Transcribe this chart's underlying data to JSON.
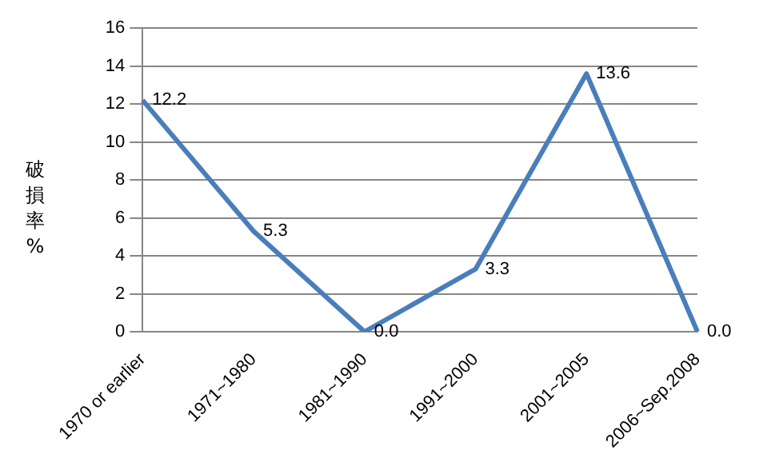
{
  "chart_data": {
    "type": "line",
    "ylabel": "破損率 %",
    "categories": [
      "1970 or earlier",
      "1971~1980",
      "1981~1990",
      "1991~2000",
      "2001~2005",
      "2006~Sep.2008"
    ],
    "values": [
      12.2,
      5.3,
      0.0,
      3.3,
      13.6,
      0.0
    ],
    "value_labels": [
      "12.2",
      "5.3",
      "0.0",
      "3.3",
      "13.6",
      "0.0"
    ],
    "color": "#4a7ebb",
    "ylim": [
      0,
      16
    ],
    "yticks": [
      0,
      2,
      4,
      6,
      8,
      10,
      12,
      14,
      16
    ],
    "grid": "y",
    "legend": false,
    "marker": "none",
    "line_style": "solid"
  }
}
